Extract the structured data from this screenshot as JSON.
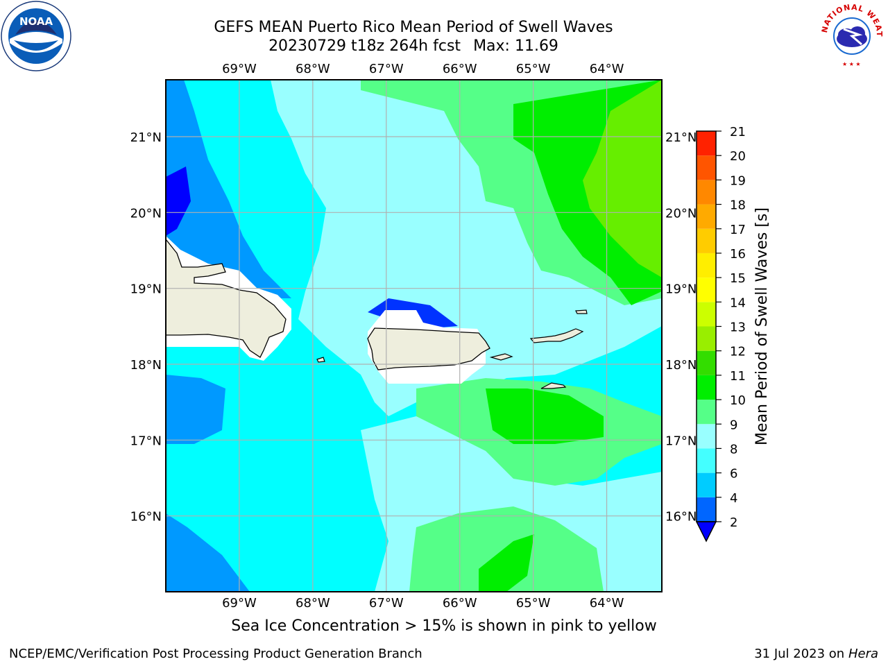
{
  "title": "GEFS MEAN Puerto Rico Mean Period of Swell Waves",
  "subtitle_run": "20230729 t18z 264h fcst",
  "subtitle_max": "Max: 11.69",
  "caption": "Sea Ice Concentration > 15% is shown in pink to yellow",
  "footer": {
    "left": "NCEP/EMC/Verification Post Processing Product Generation Branch",
    "right_date": "31 Jul 2023 on ",
    "right_machine": "Hera"
  },
  "logos": {
    "noaa": {
      "icon": "noaa-logo",
      "text": "NOAA"
    },
    "nws": {
      "icon": "nws-logo",
      "text": "NATIONAL WEATHER SERVICE"
    }
  },
  "map": {
    "lon_range": [
      -70.0,
      -63.25
    ],
    "lat_range": [
      15.0,
      21.75
    ],
    "lon_ticks": [
      {
        "value": -69,
        "label": "69°W"
      },
      {
        "value": -68,
        "label": "68°W"
      },
      {
        "value": -67,
        "label": "67°W"
      },
      {
        "value": -66,
        "label": "66°W"
      },
      {
        "value": -65,
        "label": "65°W"
      },
      {
        "value": -64,
        "label": "64°W"
      }
    ],
    "lat_ticks": [
      {
        "value": 21,
        "label": "21°N"
      },
      {
        "value": 20,
        "label": "20°N"
      },
      {
        "value": 19,
        "label": "19°N"
      },
      {
        "value": 18,
        "label": "18°N"
      },
      {
        "value": 17,
        "label": "17°N"
      },
      {
        "value": 16,
        "label": "16°N"
      }
    ],
    "land_color": "#eeeedd",
    "grid_color": "#b0b0b0"
  },
  "colorbar": {
    "label": "Mean Period of Swell Waves [s]",
    "levels": [
      2,
      3,
      4,
      5,
      6,
      7,
      8,
      9,
      10,
      11,
      12,
      13,
      14,
      15,
      16,
      17,
      18,
      19,
      20,
      21
    ],
    "tick_labels": [
      "2",
      "4",
      "6",
      "8",
      "9",
      "10",
      "11",
      "12",
      "13",
      "14",
      "15",
      "16",
      "17",
      "18",
      "19",
      "20",
      "21"
    ],
    "colors": [
      "#0000ff",
      "#0066ff",
      "#0099ff",
      "#00ccff",
      "#00ffff",
      "#99ffff",
      "#55ff88",
      "#00ee00",
      "#33dd00",
      "#66ee00",
      "#99ee00",
      "#ccff00",
      "#ffff00",
      "#ffee00",
      "#ffcc00",
      "#ffaa00",
      "#ff8800",
      "#ff5500",
      "#ff2200",
      "#ff0000"
    ],
    "extend": "min"
  }
}
